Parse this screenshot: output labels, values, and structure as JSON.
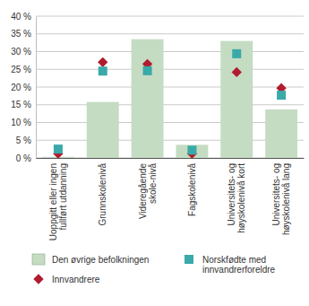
{
  "chart_data": {
    "type": "bar",
    "categories": [
      "Uoppgitt eller ingen fullført utdanning",
      "Grunnskolenivå",
      "Videregående skole-nivå",
      "Fagskolenivå",
      "Universitets- og høyskolenivå kort",
      "Universitets- og høyskolenivå lang"
    ],
    "series": [
      {
        "name": "Den øvrige befolkningen",
        "type": "bar",
        "color": "#c4dcc2",
        "values": [
          0.3,
          15.8,
          33.5,
          3.7,
          33.0,
          13.7
        ]
      },
      {
        "name": "Innvandrere",
        "type": "scatter",
        "marker": "diamond",
        "color": "#b01c2e",
        "values": [
          1.2,
          27.0,
          26.5,
          1.2,
          24.2,
          19.7
        ]
      },
      {
        "name": "Norskfødte med innvandrerforeldre",
        "type": "scatter",
        "marker": "square",
        "color": "#3aa9a9",
        "values": [
          2.5,
          24.5,
          24.6,
          2.2,
          29.4,
          17.7
        ]
      }
    ],
    "ylim": [
      0,
      40
    ],
    "yticks": [
      {
        "value": 0,
        "label": "0 %"
      },
      {
        "value": 5,
        "label": "5 %"
      },
      {
        "value": 10,
        "label": "10 %"
      },
      {
        "value": 15,
        "label": "15 %"
      },
      {
        "value": 20,
        "label": "20 %"
      },
      {
        "value": 25,
        "label": "25 %"
      },
      {
        "value": 30,
        "label": "30 %"
      },
      {
        "value": 35,
        "label": "35 %"
      },
      {
        "value": 40,
        "label": "40 %"
      }
    ],
    "grid": true,
    "legend": "bottom"
  }
}
